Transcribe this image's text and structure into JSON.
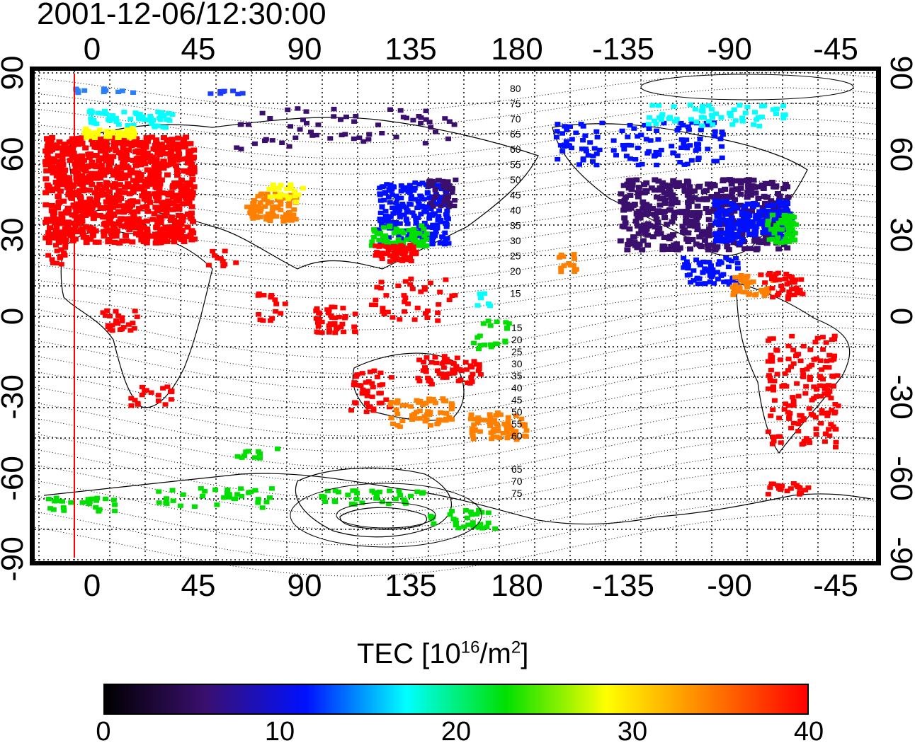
{
  "title": "2001-12-06/12:30:00",
  "map": {
    "projection": "cylindrical",
    "lon_labels": [
      "0",
      "45",
      "90",
      "135",
      "180",
      "-135",
      "-90",
      "-45"
    ],
    "lat_labels": [
      "90",
      "60",
      "30",
      "0",
      "-30",
      "-60",
      "-90"
    ],
    "grid": "dotted 15°",
    "contour_labels_north": [
      "80",
      "75",
      "70",
      "65",
      "60",
      "55",
      "50",
      "45",
      "40",
      "35",
      "30",
      "25",
      "20",
      "15"
    ],
    "contour_labels_south": [
      "15",
      "20",
      "25",
      "30",
      "35",
      "40",
      "45",
      "50",
      "55",
      "60",
      "65",
      "70",
      "75"
    ],
    "terminator_color": "#ff0000"
  },
  "colorbar": {
    "label_prefix": "TEC  [10",
    "label_exp1": "16",
    "label_mid": "/m",
    "label_exp2": "2",
    "label_suffix": "]",
    "ticks": [
      "0",
      "10",
      "20",
      "30",
      "40"
    ],
    "range": [
      0,
      40
    ],
    "colors": [
      "#000000",
      "#3a0f6e",
      "#0010ff",
      "#00ffff",
      "#00e000",
      "#ffff00",
      "#ff8000",
      "#ff0000"
    ]
  }
}
